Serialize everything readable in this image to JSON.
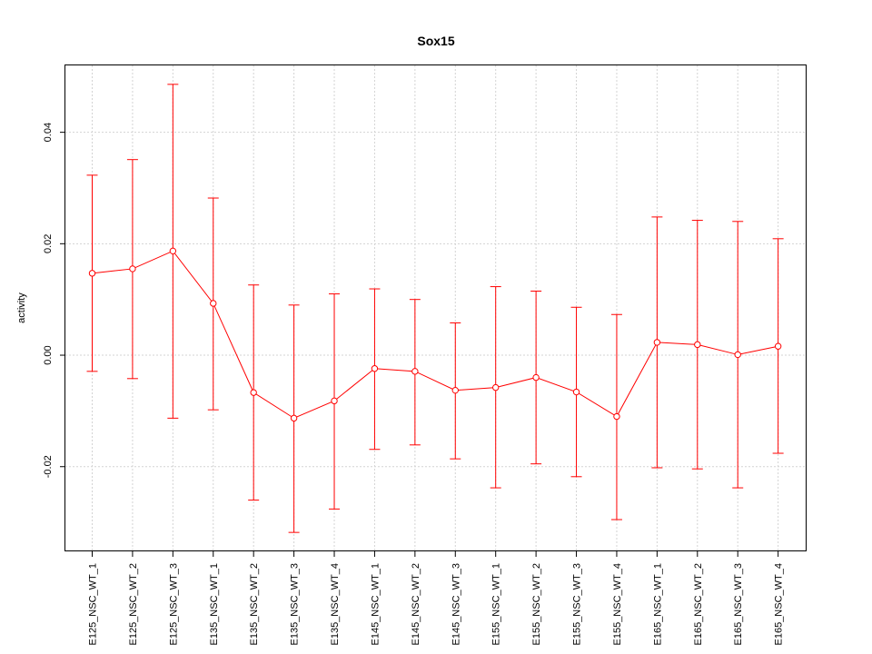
{
  "chart_data": {
    "type": "line",
    "title": "Sox15",
    "xlabel": "",
    "ylabel": "activity",
    "categories": [
      "E125_NSC_WT_1",
      "E125_NSC_WT_2",
      "E125_NSC_WT_3",
      "E135_NSC_WT_1",
      "E135_NSC_WT_2",
      "E135_NSC_WT_3",
      "E135_NSC_WT_4",
      "E145_NSC_WT_1",
      "E145_NSC_WT_2",
      "E145_NSC_WT_3",
      "E155_NSC_WT_1",
      "E155_NSC_WT_2",
      "E155_NSC_WT_3",
      "E155_NSC_WT_4",
      "E165_NSC_WT_1",
      "E165_NSC_WT_2",
      "E165_NSC_WT_3",
      "E165_NSC_WT_4"
    ],
    "series": [
      {
        "values": [
          0.0147,
          0.0155,
          0.0187,
          0.0093,
          -0.0067,
          -0.0113,
          -0.0082,
          -0.0024,
          -0.0029,
          -0.0063,
          -0.0058,
          -0.004,
          -0.0066,
          -0.011,
          0.0023,
          0.0019,
          0.0001,
          0.0016
        ],
        "lower": [
          -0.0029,
          -0.0042,
          -0.0113,
          -0.0098,
          -0.026,
          -0.0318,
          -0.0276,
          -0.0169,
          -0.0161,
          -0.0186,
          -0.0238,
          -0.0195,
          -0.0218,
          -0.0295,
          -0.0202,
          -0.0204,
          -0.0238,
          -0.0176
        ],
        "upper": [
          0.0323,
          0.0351,
          0.0486,
          0.0282,
          0.0126,
          0.009,
          0.011,
          0.0119,
          0.01,
          0.0058,
          0.0123,
          0.0115,
          0.0086,
          0.0073,
          0.0248,
          0.0242,
          0.024,
          0.0209
        ]
      }
    ],
    "yticks": [
      -0.02,
      0.0,
      0.02,
      0.04
    ],
    "ytick_labels": [
      "-0.02",
      "0.00",
      "0.02",
      "0.04"
    ],
    "ylim": [
      -0.0352,
      0.052
    ],
    "grid": true,
    "colors": {
      "series": "#ff0000",
      "grid": "#d3d3d3",
      "axis": "#000000"
    }
  }
}
